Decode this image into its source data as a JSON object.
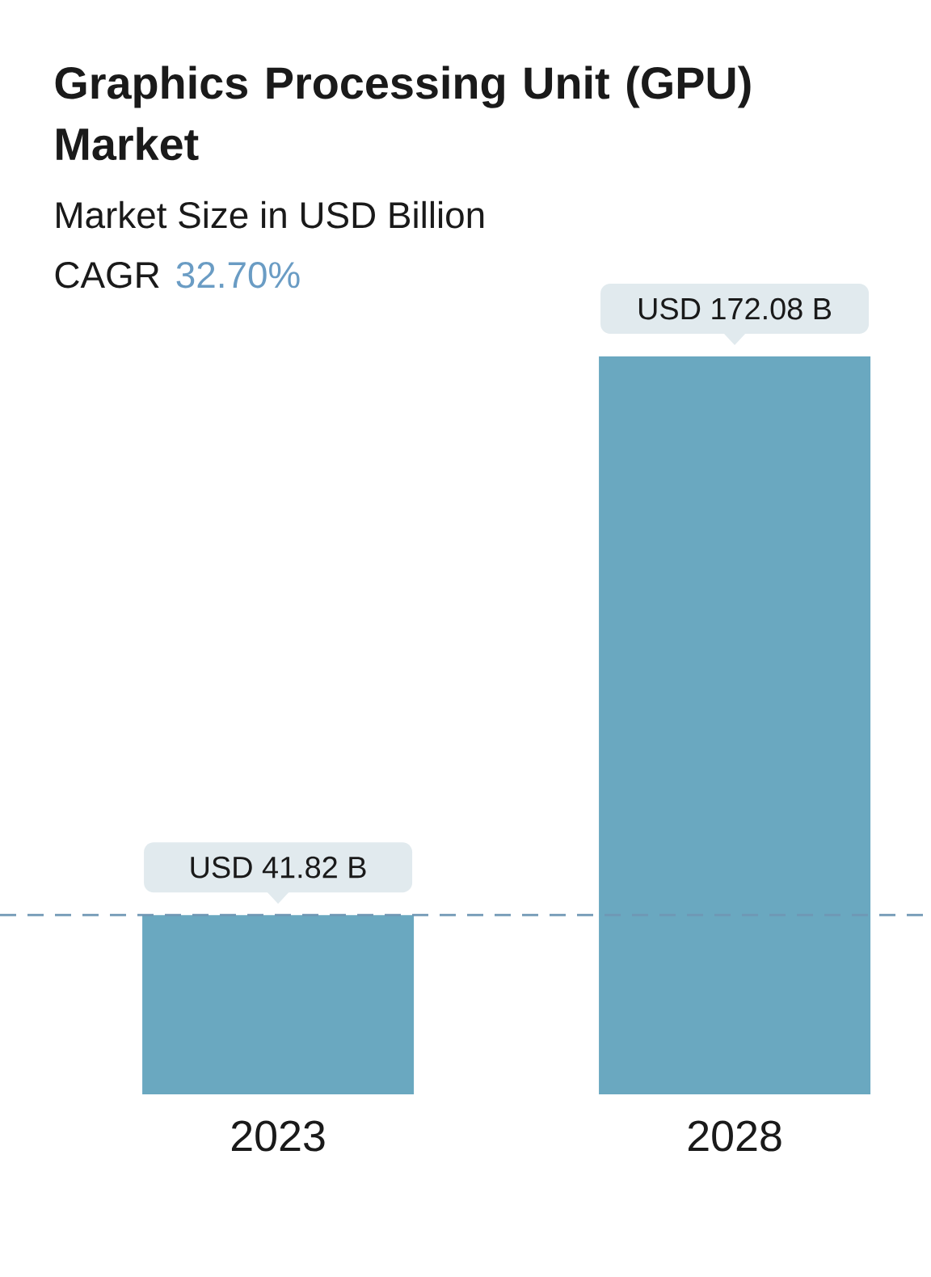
{
  "chart_data": {
    "type": "bar",
    "title": "Graphics Processing Unit (GPU) Market",
    "subtitle": "Market Size in USD Billion",
    "annotations": [
      "CAGR",
      "32.70%"
    ],
    "categories": [
      "2023",
      "2028"
    ],
    "values": [
      41.82,
      172.08
    ],
    "value_labels": [
      "USD 41.82 B",
      "USD 172.08 B"
    ],
    "color": "#6aa8c0",
    "ylim": [
      0,
      190
    ],
    "tick_labels": "x",
    "ref_lines": [
      {
        "axis": "y",
        "value": 41.82,
        "line_style": "dashed",
        "color": "#6f97b4"
      }
    ]
  }
}
